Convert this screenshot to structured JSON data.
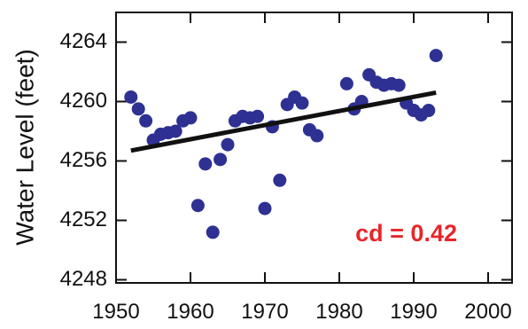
{
  "chart_data": {
    "type": "scatter",
    "title": "",
    "xlabel": "",
    "ylabel": "Water Level (feet)",
    "xlim": [
      1950,
      2000
    ],
    "ylim": [
      4248,
      4266
    ],
    "xticks": [
      1950,
      1960,
      1970,
      1980,
      1990,
      2000
    ],
    "xtick_labels": [
      "1950",
      "1960",
      "1970",
      "1980",
      "1990",
      "2000"
    ],
    "yticks": [
      4248,
      4252,
      4256,
      4260,
      4264
    ],
    "ytick_labels": [
      "4248",
      "4252",
      "4256",
      "4260",
      "4264"
    ],
    "grid": false,
    "legend": "none",
    "series": [
      {
        "color": "#2e3192",
        "x": [
          1952,
          1953,
          1954,
          1955,
          1956,
          1957,
          1958,
          1959,
          1960,
          1961,
          1962,
          1963,
          1964,
          1965,
          1966,
          1967,
          1968,
          1969,
          1970,
          1971,
          1972,
          1973,
          1974,
          1975,
          1976,
          1977,
          1981,
          1982,
          1983,
          1984,
          1985,
          1986,
          1987,
          1988,
          1989,
          1990,
          1991,
          1992,
          1993
        ],
        "y": [
          4260.3,
          4259.5,
          4258.7,
          4257.4,
          4257.8,
          4257.9,
          4258.0,
          4258.7,
          4258.9,
          4253.0,
          4255.8,
          4251.2,
          4256.1,
          4257.1,
          4258.7,
          4259.0,
          4258.9,
          4259.0,
          4252.8,
          4258.3,
          4254.7,
          4259.8,
          4260.3,
          4259.9,
          4258.1,
          4257.7,
          4261.2,
          4259.5,
          4260.0,
          4261.8,
          4261.3,
          4261.1,
          4261.2,
          4261.1,
          4259.9,
          4259.4,
          4259.1,
          4259.4,
          4263.1
        ]
      }
    ],
    "trendline": {
      "color": "#111111",
      "x": [
        1952,
        1993
      ],
      "y": [
        4256.7,
        4260.6
      ]
    },
    "annotation": {
      "text": "cd = 0.42",
      "color": "#e8262a"
    }
  }
}
